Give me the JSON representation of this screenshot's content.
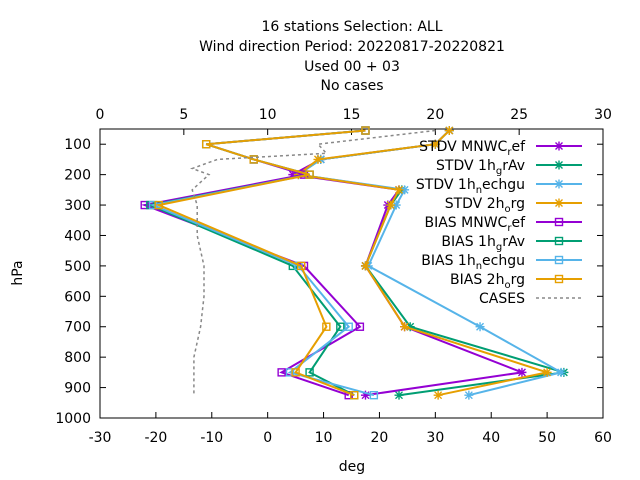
{
  "chart_data": {
    "type": "line",
    "title_lines": [
      "16 stations Selection: ALL",
      "Wind direction  Period: 20220817-20220821",
      "Used  00 + 03",
      "No cases"
    ],
    "xlabel": "deg",
    "ylabel": "hPa",
    "xlim": [
      -30,
      60
    ],
    "x2lim": [
      0,
      30
    ],
    "ylim": [
      1000,
      50
    ],
    "y_inverted": true,
    "x_ticks": [
      -30,
      -20,
      -10,
      0,
      10,
      20,
      30,
      40,
      50,
      60
    ],
    "x_tick_labels": [
      "-30",
      "-20",
      "-10",
      "0",
      "10",
      "20",
      "30",
      "40",
      "50",
      "60"
    ],
    "x2_ticks": [
      0,
      5,
      10,
      15,
      20,
      25,
      30
    ],
    "x2_tick_labels": [
      "0",
      "5",
      "10",
      "15",
      "20",
      "25",
      "30"
    ],
    "y_ticks": [
      100,
      200,
      300,
      400,
      500,
      600,
      700,
      800,
      900,
      1000
    ],
    "y_tick_labels": [
      "100",
      "200",
      "300",
      "400",
      "500",
      "600",
      "700",
      "800",
      "900",
      "1000"
    ],
    "grid": false,
    "legend_position": "top-right",
    "series": [
      {
        "name_main": "STDV MNWC",
        "name_sub": "r",
        "name_tail": "ef",
        "color": "#9400d3",
        "marker": "x-star",
        "dash": false,
        "axis": "x",
        "points": [
          [
            32.5,
            55
          ],
          [
            30,
            100
          ],
          [
            9.5,
            150
          ],
          [
            4.5,
            200
          ],
          [
            23.5,
            250
          ],
          [
            21.5,
            300
          ],
          [
            17.5,
            500
          ],
          [
            24.5,
            700
          ],
          [
            45.5,
            850
          ],
          [
            17.5,
            925
          ]
        ]
      },
      {
        "name_main": "STDV 1h",
        "name_sub": "g",
        "name_tail": "rAv",
        "color": "#009e73",
        "marker": "x-star",
        "dash": false,
        "axis": "x",
        "points": [
          [
            32.5,
            55
          ],
          [
            30,
            100
          ],
          [
            9.5,
            150
          ],
          [
            5.5,
            200
          ],
          [
            24,
            250
          ],
          [
            22,
            300
          ],
          [
            17.5,
            500
          ],
          [
            25.5,
            700
          ],
          [
            53,
            850
          ],
          [
            23.5,
            925
          ]
        ]
      },
      {
        "name_main": "STDV 1h",
        "name_sub": "n",
        "name_tail": "echgu",
        "color": "#56b4e9",
        "marker": "x-star",
        "dash": false,
        "axis": "x",
        "points": [
          [
            32.5,
            55
          ],
          [
            30,
            100
          ],
          [
            9.5,
            150
          ],
          [
            5.5,
            200
          ],
          [
            24.5,
            250
          ],
          [
            23,
            300
          ],
          [
            18,
            500
          ],
          [
            38,
            700
          ],
          [
            52.5,
            850
          ],
          [
            36,
            925
          ]
        ]
      },
      {
        "name_main": "STDV 2h",
        "name_sub": "o",
        "name_tail": "rg",
        "color": "#e69f00",
        "marker": "x-star",
        "dash": false,
        "axis": "x",
        "points": [
          [
            32.5,
            55
          ],
          [
            30,
            100
          ],
          [
            9,
            150
          ],
          [
            5.5,
            200
          ],
          [
            23.5,
            250
          ],
          [
            22,
            300
          ],
          [
            17.5,
            500
          ],
          [
            24.5,
            700
          ],
          [
            50,
            850
          ],
          [
            30.5,
            925
          ]
        ]
      },
      {
        "name_main": "BIAS MNWC",
        "name_sub": "r",
        "name_tail": "ef",
        "color": "#9400d3",
        "marker": "square",
        "dash": false,
        "axis": "x",
        "points": [
          [
            17.5,
            55
          ],
          [
            -11,
            100
          ],
          [
            -2.5,
            150
          ],
          [
            6.5,
            200
          ],
          [
            -22,
            300
          ],
          [
            6.5,
            500
          ],
          [
            16.5,
            700
          ],
          [
            2.5,
            850
          ],
          [
            14.5,
            925
          ]
        ]
      },
      {
        "name_main": "BIAS 1h",
        "name_sub": "g",
        "name_tail": "rAv",
        "color": "#009e73",
        "marker": "square",
        "dash": false,
        "axis": "x",
        "points": [
          [
            17.5,
            55
          ],
          [
            -11,
            100
          ],
          [
            -2.5,
            150
          ],
          [
            7.5,
            200
          ],
          [
            -21,
            300
          ],
          [
            4.5,
            500
          ],
          [
            13,
            700
          ],
          [
            7.5,
            850
          ],
          [
            15.5,
            925
          ]
        ]
      },
      {
        "name_main": "BIAS 1h",
        "name_sub": "n",
        "name_tail": "echgu",
        "color": "#56b4e9",
        "marker": "square",
        "dash": false,
        "axis": "x",
        "points": [
          [
            17.5,
            55
          ],
          [
            -11,
            100
          ],
          [
            -2.5,
            150
          ],
          [
            7.5,
            200
          ],
          [
            -20.5,
            300
          ],
          [
            5.5,
            500
          ],
          [
            14.5,
            700
          ],
          [
            4,
            850
          ],
          [
            19,
            925
          ]
        ]
      },
      {
        "name_main": "BIAS 2h",
        "name_sub": "o",
        "name_tail": "rg",
        "color": "#e69f00",
        "marker": "square",
        "dash": false,
        "axis": "x",
        "points": [
          [
            17.5,
            55
          ],
          [
            -11,
            100
          ],
          [
            -2.5,
            150
          ],
          [
            7.5,
            200
          ],
          [
            -19.5,
            300
          ],
          [
            6,
            500
          ],
          [
            10.5,
            700
          ],
          [
            5,
            850
          ],
          [
            15.5,
            925
          ]
        ]
      },
      {
        "name_main": "CASES",
        "name_sub": "",
        "name_tail": "",
        "color": "#888888",
        "marker": "none",
        "dash": true,
        "axis": "x2",
        "points": [
          [
            20,
            55
          ],
          [
            13,
            100
          ],
          [
            13.5,
            130
          ],
          [
            7,
            150
          ],
          [
            5.5,
            180
          ],
          [
            6.5,
            200
          ],
          [
            5.5,
            250
          ],
          [
            5.8,
            300
          ],
          [
            5.8,
            400
          ],
          [
            6.2,
            500
          ],
          [
            6.2,
            600
          ],
          [
            6,
            700
          ],
          [
            5.6,
            800
          ],
          [
            5.6,
            925
          ]
        ]
      }
    ]
  }
}
